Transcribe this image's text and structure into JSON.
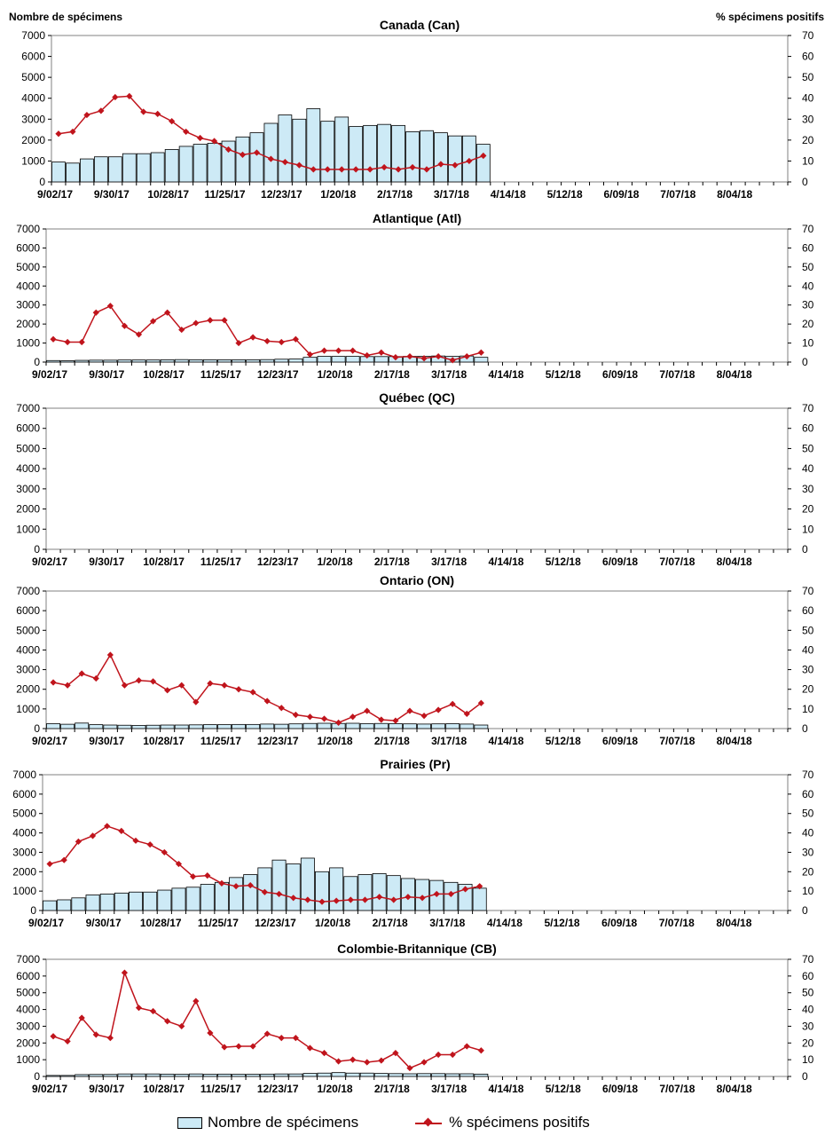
{
  "header": {
    "left_axis_title": "Nombre de spécimens",
    "right_axis_title": "% spécimens positifs"
  },
  "legend": {
    "bars_label": "Nombre de spécimens",
    "line_label": "% spécimens positifs"
  },
  "colors": {
    "bar_fill": "#cdeaf6",
    "bar_stroke": "#000000",
    "line": "#c0141c"
  },
  "chart_data": [
    {
      "type": "bar+line",
      "title": "Canada (Can)",
      "x_tick_labels": [
        "9/02/17",
        "9/30/17",
        "10/28/17",
        "11/25/17",
        "12/23/17",
        "1/20/18",
        "2/17/18",
        "3/17/18",
        "4/14/18",
        "5/12/18",
        "6/09/18",
        "7/07/18",
        "8/04/18"
      ],
      "weeks": 52,
      "y_left_lim": [
        0,
        7000
      ],
      "y_left_ticks": [
        0,
        1000,
        2000,
        3000,
        4000,
        5000,
        6000,
        7000
      ],
      "y_right_lim": [
        0,
        70
      ],
      "y_right_ticks": [
        0,
        10,
        20,
        30,
        40,
        50,
        60,
        70
      ],
      "series": [
        {
          "name": "Nombre de spécimens",
          "type": "bar",
          "axis": "left",
          "values": [
            950,
            900,
            1100,
            1200,
            1200,
            1350,
            1350,
            1400,
            1550,
            1700,
            1800,
            1850,
            1950,
            2150,
            2350,
            2800,
            3200,
            3000,
            3500,
            2900,
            3100,
            2650,
            2700,
            2750,
            2700,
            2400,
            2450,
            2350,
            2200,
            2200,
            1800
          ]
        },
        {
          "name": "% spécimens positifs",
          "type": "line",
          "axis": "right",
          "values": [
            23,
            24,
            32,
            34,
            40.5,
            41,
            33.5,
            32.5,
            29,
            24,
            21,
            19.5,
            15.5,
            13,
            14,
            11,
            9.5,
            8,
            6,
            6,
            6,
            6,
            6,
            7,
            6,
            7,
            6,
            8.5,
            8,
            10,
            12.5
          ]
        }
      ]
    },
    {
      "type": "bar+line",
      "title": "Atlantique (Atl)",
      "x_tick_labels": [
        "9/02/17",
        "9/30/17",
        "10/28/17",
        "11/25/17",
        "12/23/17",
        "1/20/18",
        "2/17/18",
        "3/17/18",
        "4/14/18",
        "5/12/18",
        "6/09/18",
        "7/07/18",
        "8/04/18"
      ],
      "weeks": 52,
      "y_left_lim": [
        0,
        7000
      ],
      "y_left_ticks": [
        0,
        1000,
        2000,
        3000,
        4000,
        5000,
        6000,
        7000
      ],
      "y_right_lim": [
        0,
        70
      ],
      "y_right_ticks": [
        0,
        10,
        20,
        30,
        40,
        50,
        60,
        70
      ],
      "series": [
        {
          "name": "Nombre de spécimens",
          "type": "bar",
          "axis": "left",
          "values": [
            80,
            70,
            90,
            100,
            100,
            110,
            110,
            110,
            120,
            130,
            120,
            120,
            120,
            120,
            120,
            130,
            150,
            160,
            250,
            300,
            300,
            300,
            290,
            290,
            290,
            300,
            300,
            320,
            300,
            320,
            250
          ]
        },
        {
          "name": "% spécimens positifs",
          "type": "line",
          "axis": "right",
          "values": [
            12,
            10.5,
            10.5,
            26,
            29.5,
            19,
            14.5,
            21.5,
            26,
            17,
            20.5,
            22,
            22,
            10,
            13,
            11,
            10.5,
            12,
            4,
            6,
            6,
            6,
            3.5,
            5,
            2.5,
            3,
            2,
            3,
            1,
            3,
            5
          ]
        }
      ]
    },
    {
      "type": "bar+line",
      "title": "Québec (QC)",
      "x_tick_labels": [
        "9/02/17",
        "9/30/17",
        "10/28/17",
        "11/25/17",
        "12/23/17",
        "1/20/18",
        "2/17/18",
        "3/17/18",
        "4/14/18",
        "5/12/18",
        "6/09/18",
        "7/07/18",
        "8/04/18"
      ],
      "weeks": 52,
      "y_left_lim": [
        0,
        7000
      ],
      "y_left_ticks": [
        0,
        1000,
        2000,
        3000,
        4000,
        5000,
        6000,
        7000
      ],
      "y_right_lim": [
        0,
        70
      ],
      "y_right_ticks": [
        0,
        10,
        20,
        30,
        40,
        50,
        60,
        70
      ],
      "series": [
        {
          "name": "Nombre de spécimens",
          "type": "bar",
          "axis": "left",
          "values": []
        },
        {
          "name": "% spécimens positifs",
          "type": "line",
          "axis": "right",
          "values": []
        }
      ]
    },
    {
      "type": "bar+line",
      "title": "Ontario (ON)",
      "x_tick_labels": [
        "9/02/17",
        "9/30/17",
        "10/28/17",
        "11/25/17",
        "12/23/17",
        "1/20/18",
        "2/17/18",
        "3/17/18",
        "4/14/18",
        "5/12/18",
        "6/09/18",
        "7/07/18",
        "8/04/18"
      ],
      "weeks": 52,
      "y_left_lim": [
        0,
        7000
      ],
      "y_left_ticks": [
        0,
        1000,
        2000,
        3000,
        4000,
        5000,
        6000,
        7000
      ],
      "y_right_lim": [
        0,
        70
      ],
      "y_right_ticks": [
        0,
        10,
        20,
        30,
        40,
        50,
        60,
        70
      ],
      "series": [
        {
          "name": "Nombre de spécimens",
          "type": "bar",
          "axis": "left",
          "values": [
            250,
            220,
            280,
            200,
            180,
            170,
            160,
            170,
            180,
            180,
            190,
            200,
            200,
            210,
            210,
            230,
            220,
            240,
            260,
            270,
            260,
            270,
            250,
            260,
            250,
            240,
            230,
            240,
            250,
            230,
            180
          ]
        },
        {
          "name": "% spécimens positifs",
          "type": "line",
          "axis": "right",
          "values": [
            23.5,
            22,
            28,
            25.5,
            37.5,
            22,
            24.5,
            24,
            19.5,
            22,
            13.5,
            23,
            22,
            20,
            18.5,
            14,
            10.5,
            7,
            6,
            5,
            3,
            6,
            9,
            4.5,
            4,
            9,
            6.5,
            9.5,
            12.5,
            7.5,
            13
          ]
        }
      ]
    },
    {
      "type": "bar+line",
      "title": "Prairies (Pr)",
      "x_tick_labels": [
        "9/02/17",
        "9/30/17",
        "10/28/17",
        "11/25/17",
        "12/23/17",
        "1/20/18",
        "2/17/18",
        "3/17/18",
        "4/14/18",
        "5/12/18",
        "6/09/18",
        "7/07/18",
        "8/04/18"
      ],
      "weeks": 52,
      "y_left_lim": [
        0,
        7000
      ],
      "y_left_ticks": [
        0,
        1000,
        2000,
        3000,
        4000,
        5000,
        6000,
        7000
      ],
      "y_right_lim": [
        0,
        70
      ],
      "y_right_ticks": [
        0,
        10,
        20,
        30,
        40,
        50,
        60,
        70
      ],
      "series": [
        {
          "name": "Nombre de spécimens",
          "type": "bar",
          "axis": "left",
          "values": [
            500,
            550,
            650,
            800,
            850,
            900,
            950,
            950,
            1050,
            1150,
            1200,
            1350,
            1450,
            1700,
            1850,
            2200,
            2600,
            2400,
            2700,
            2000,
            2200,
            1750,
            1850,
            1900,
            1800,
            1650,
            1600,
            1550,
            1450,
            1350,
            1150
          ]
        },
        {
          "name": "% spécimens positifs",
          "type": "line",
          "axis": "right",
          "values": [
            24,
            26,
            35.5,
            38.5,
            43.5,
            41,
            36,
            34,
            30,
            24,
            17.5,
            18,
            14,
            12.5,
            13,
            9.5,
            8.5,
            6.5,
            5.5,
            4.5,
            5,
            5.5,
            5.5,
            7,
            5.5,
            7,
            6.5,
            8.5,
            8.5,
            11,
            12.5
          ]
        }
      ]
    },
    {
      "type": "bar+line",
      "title": "Colombie-Britannique (CB)",
      "x_tick_labels": [
        "9/02/17",
        "9/30/17",
        "10/28/17",
        "11/25/17",
        "12/23/17",
        "1/20/18",
        "2/17/18",
        "3/17/18",
        "4/14/18",
        "5/12/18",
        "6/09/18",
        "7/07/18",
        "8/04/18"
      ],
      "weeks": 52,
      "y_left_lim": [
        0,
        7000
      ],
      "y_left_ticks": [
        0,
        1000,
        2000,
        3000,
        4000,
        5000,
        6000,
        7000
      ],
      "y_right_lim": [
        0,
        70
      ],
      "y_right_ticks": [
        0,
        10,
        20,
        30,
        40,
        50,
        60,
        70
      ],
      "series": [
        {
          "name": "Nombre de spécimens",
          "type": "bar",
          "axis": "left",
          "values": [
            60,
            60,
            110,
            120,
            120,
            150,
            150,
            150,
            140,
            130,
            150,
            130,
            140,
            130,
            130,
            140,
            150,
            150,
            180,
            200,
            230,
            200,
            200,
            180,
            170,
            160,
            170,
            170,
            160,
            160,
            140
          ]
        },
        {
          "name": "% spécimens positifs",
          "type": "line",
          "axis": "right",
          "values": [
            24,
            21,
            35,
            25,
            23,
            62,
            41,
            39,
            33,
            30,
            45,
            26,
            17.5,
            18,
            18,
            25.5,
            23,
            23,
            17,
            14,
            9,
            10,
            8.5,
            9.5,
            14,
            5,
            8.5,
            13,
            13,
            18,
            15.5
          ]
        }
      ]
    }
  ]
}
